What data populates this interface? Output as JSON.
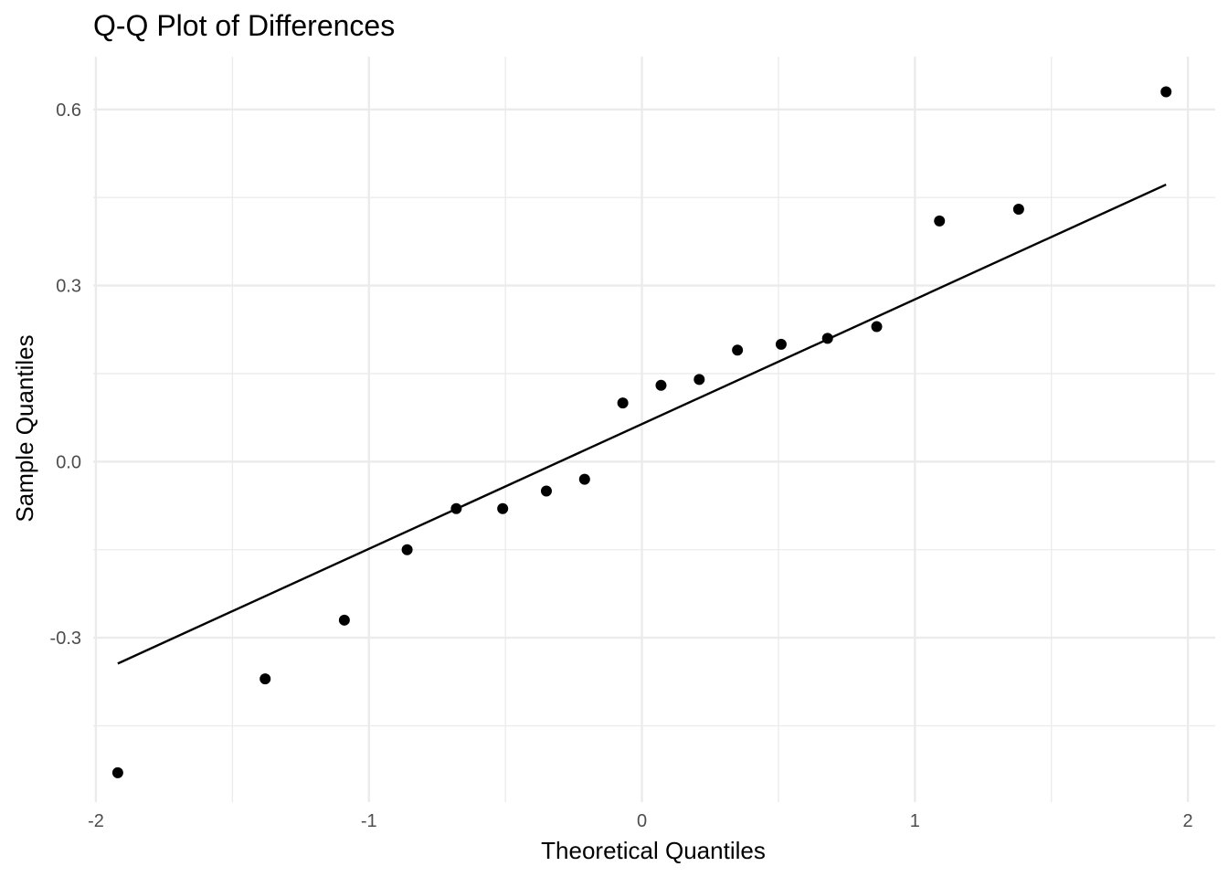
{
  "chart_data": {
    "type": "scatter",
    "title": "Q-Q Plot of Differences",
    "xlabel": "Theoretical Quantiles",
    "ylabel": "Sample Quantiles",
    "xlim": [
      -2.01,
      2.1
    ],
    "ylim": [
      -0.58,
      0.69
    ],
    "x_ticks": [
      -2,
      -1,
      0,
      1,
      2
    ],
    "x_tick_labels": [
      "-2",
      "-1",
      "0",
      "1",
      "2"
    ],
    "y_ticks": [
      -0.3,
      0.0,
      0.3,
      0.6
    ],
    "y_tick_labels": [
      "-0.3",
      "0.0",
      "0.3",
      "0.6"
    ],
    "grid": true,
    "legend": "none",
    "colors": {
      "points": "#000000",
      "line": "#000000",
      "grid": "#ebebeb",
      "background": "#ffffff"
    },
    "series": [
      {
        "x": [
          -1.92,
          -1.38,
          -1.09,
          -0.86,
          -0.68,
          -0.51,
          -0.35,
          -0.21,
          -0.07,
          0.07,
          0.21,
          0.35,
          0.51,
          0.68,
          0.86,
          1.09,
          1.38,
          1.92
        ],
        "y": [
          -0.53,
          -0.37,
          -0.27,
          -0.15,
          -0.08,
          -0.08,
          -0.05,
          -0.03,
          0.1,
          0.13,
          0.14,
          0.19,
          0.2,
          0.21,
          0.23,
          0.41,
          0.43,
          0.63
        ]
      }
    ],
    "reference_line": {
      "x": [
        -1.92,
        1.92
      ],
      "y": [
        -0.344,
        0.472
      ]
    }
  }
}
